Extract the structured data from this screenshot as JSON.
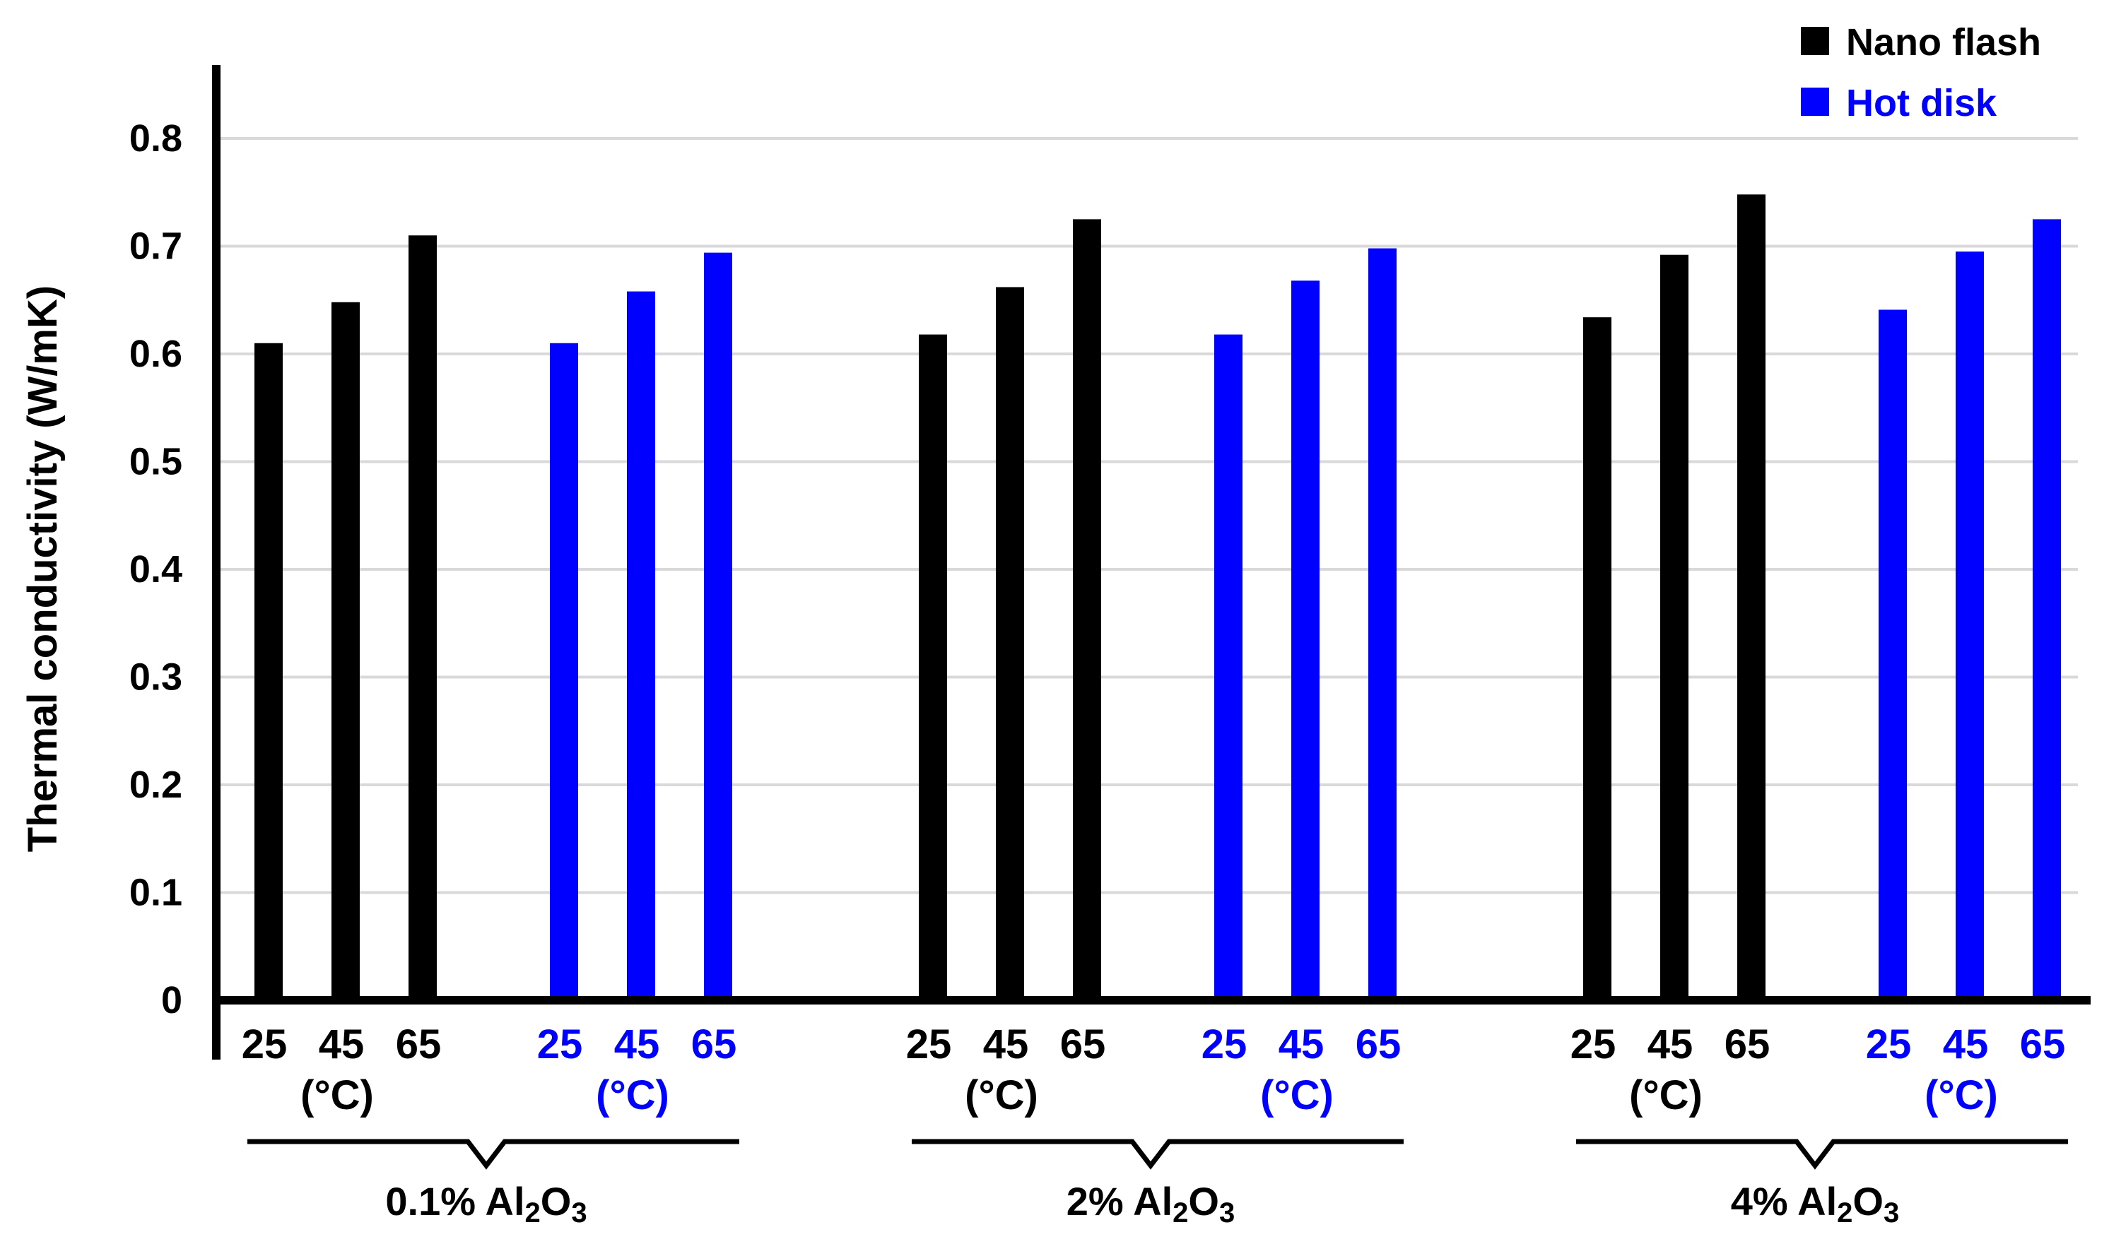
{
  "chart_data": {
    "type": "bar",
    "ylabel": "Thermal conductivity (W/mK)",
    "ylim": [
      0,
      0.8
    ],
    "yticks": [
      "0",
      "0.1",
      "0.2",
      "0.3",
      "0.4",
      "0.5",
      "0.6",
      "0.7",
      "0.8"
    ],
    "grid": true,
    "legend_position": "top-right",
    "temperatures": [
      "25",
      "45",
      "65"
    ],
    "unit_label": "(°C)",
    "groups": [
      {
        "label_prefix": "0.1% Al",
        "sub2": "2",
        "mid": "O",
        "sub3": "3",
        "nano_flash": [
          0.61,
          0.648,
          0.71
        ],
        "hot_disk": [
          0.61,
          0.658,
          0.694
        ]
      },
      {
        "label_prefix": "2% Al",
        "sub2": "2",
        "mid": "O",
        "sub3": "3",
        "nano_flash": [
          0.618,
          0.662,
          0.725
        ],
        "hot_disk": [
          0.618,
          0.668,
          0.698
        ]
      },
      {
        "label_prefix": "4% Al",
        "sub2": "2",
        "mid": "O",
        "sub3": "3",
        "nano_flash": [
          0.634,
          0.692,
          0.748
        ],
        "hot_disk": [
          0.641,
          0.695,
          0.725
        ]
      }
    ],
    "series": [
      {
        "name": "Nano flash",
        "color": "#000000"
      },
      {
        "name": "Hot disk",
        "color": "#0000ff"
      }
    ]
  }
}
